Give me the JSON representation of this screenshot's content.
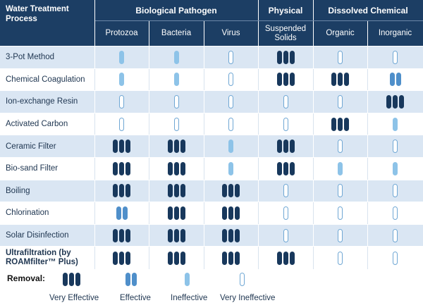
{
  "header": {
    "process_label": "Water Treatment Process",
    "groups": [
      {
        "label": "Biological Pathogen"
      },
      {
        "label": "Physical"
      },
      {
        "label": "Dissolved Chemical"
      }
    ],
    "columns": [
      {
        "label": "Protozoa"
      },
      {
        "label": "Bacteria"
      },
      {
        "label": "Virus"
      },
      {
        "label": "Suspended Solids"
      },
      {
        "label": "Organic"
      },
      {
        "label": "Inorganic"
      }
    ]
  },
  "rows": [
    {
      "label": "3-Pot Method",
      "ratings": [
        "ie",
        "ie",
        "vi",
        "ve",
        "vi",
        "vi"
      ]
    },
    {
      "label": "Chemical Coagulation",
      "ratings": [
        "ie",
        "ie",
        "vi",
        "ve",
        "ve",
        "ef"
      ]
    },
    {
      "label": "Ion-exchange Resin",
      "ratings": [
        "vi",
        "vi",
        "vi",
        "vi",
        "vi",
        "ve"
      ]
    },
    {
      "label": "Activated Carbon",
      "ratings": [
        "vi",
        "vi",
        "vi",
        "vi",
        "ve",
        "ie"
      ]
    },
    {
      "label": "Ceramic Filter",
      "ratings": [
        "ve",
        "ve",
        "ie",
        "ve",
        "vi",
        "vi"
      ]
    },
    {
      "label": "Bio-sand Filter",
      "ratings": [
        "ve",
        "ve",
        "ie",
        "ve",
        "ie",
        "ie"
      ]
    },
    {
      "label": "Boiling",
      "ratings": [
        "ve",
        "ve",
        "ve",
        "vi",
        "vi",
        "vi"
      ]
    },
    {
      "label": "Chlorination",
      "ratings": [
        "ef",
        "ve",
        "ve",
        "vi",
        "vi",
        "vi"
      ]
    },
    {
      "label": "Solar Disinfection",
      "ratings": [
        "ve",
        "ve",
        "ve",
        "vi",
        "vi",
        "vi"
      ]
    },
    {
      "label": "Ultrafiltration (by ROAMfilter™ Plus)",
      "bold": true,
      "ratings": [
        "ve",
        "ve",
        "ve",
        "ve",
        "vi",
        "vi"
      ]
    }
  ],
  "legend": {
    "title": "Removal:",
    "items": [
      {
        "key": "ve",
        "label": "Very Effective"
      },
      {
        "key": "ef",
        "label": "Effective"
      },
      {
        "key": "ie",
        "label": "Ineffective"
      },
      {
        "key": "vi",
        "label": "Very Ineffective"
      }
    ]
  },
  "colors": {
    "header_bg": "#1c3e64",
    "row_stripe": "#dae6f3",
    "very_effective": "#18385c",
    "effective": "#4f8fca",
    "ineffective": "#8dc3e8",
    "very_ineffective_outline": "#6fa7d4"
  }
}
